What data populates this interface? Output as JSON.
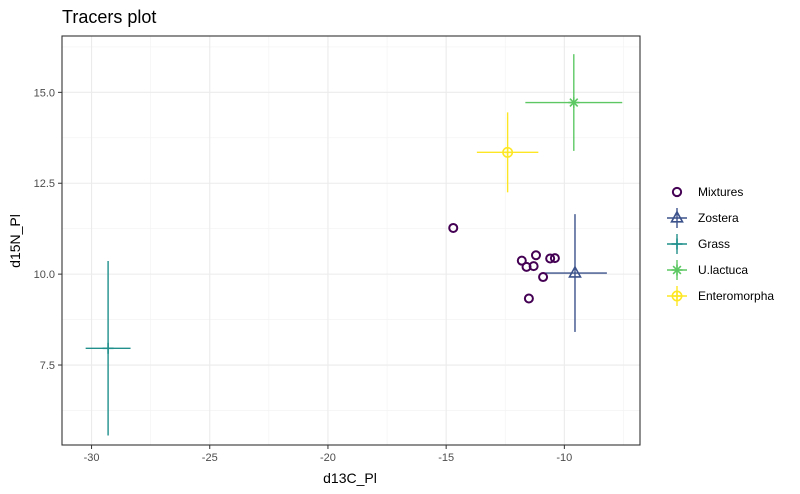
{
  "chart_data": {
    "type": "scatter",
    "title": "Tracers plot",
    "xlabel": "d13C_Pl",
    "ylabel": "d15N_Pl",
    "xlim": [
      -31.25,
      -6.8
    ],
    "ylim": [
      5.3,
      16.55
    ],
    "x_ticks": [
      -30,
      -25,
      -20,
      -15,
      -10
    ],
    "y_ticks": [
      7.5,
      10.0,
      12.5,
      15.0
    ],
    "x_tick_labels": [
      "-30",
      "-25",
      "-20",
      "-15",
      "-10"
    ],
    "y_tick_labels": [
      "7.5",
      "10.0",
      "12.5",
      "15.0"
    ],
    "grid": true,
    "legend_position": "right",
    "mixtures": {
      "name": "Mixtures",
      "color": "#440154",
      "points": [
        {
          "x": -14.7,
          "y": 11.27
        },
        {
          "x": -11.2,
          "y": 10.52
        },
        {
          "x": -11.8,
          "y": 10.37
        },
        {
          "x": -11.6,
          "y": 10.2
        },
        {
          "x": -11.3,
          "y": 10.22
        },
        {
          "x": -10.6,
          "y": 10.43
        },
        {
          "x": -10.4,
          "y": 10.44
        },
        {
          "x": -10.9,
          "y": 9.92
        },
        {
          "x": -11.5,
          "y": 9.33
        }
      ]
    },
    "sources": [
      {
        "name": "Zostera",
        "color": "#3B528B",
        "shape": "triangle",
        "x": -9.55,
        "y": 10.03,
        "x_err": 1.35,
        "y_err": 1.62
      },
      {
        "name": "Grass",
        "color": "#21908C",
        "shape": "plus",
        "x": -29.3,
        "y": 7.96,
        "x_err": 0.95,
        "y_err": 2.4
      },
      {
        "name": "U.lactuca",
        "color": "#5DC863",
        "shape": "asterisk",
        "x": -9.6,
        "y": 14.72,
        "x_err": 2.05,
        "y_err": 1.33
      },
      {
        "name": "Enteromorpha",
        "color": "#FDE725",
        "shape": "circle-plus",
        "x": -12.4,
        "y": 13.35,
        "x_err": 1.3,
        "y_err": 1.1
      }
    ]
  }
}
